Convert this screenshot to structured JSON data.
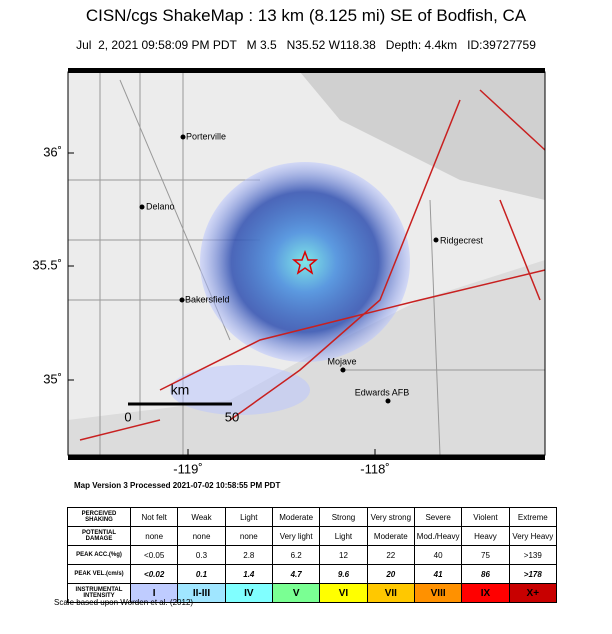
{
  "header": {
    "title": "CISN/cgs ShakeMap : 13 km (8.125 mi) SE of Bodfish, CA",
    "subtitle": "Jul  2, 2021 09:58:09 PM PDT   M 3.5   N35.52 W118.38   Depth: 4.4km   ID:39727759"
  },
  "map": {
    "lat_labels": [
      "36˚",
      "35.5˚",
      "35˚"
    ],
    "lon_labels": [
      "-119˚",
      "-118˚"
    ],
    "cities": [
      "Porterville",
      "Delano",
      "Ridgecrest",
      "Bakersfield",
      "Mojave",
      "Edwards AFB"
    ],
    "scale": {
      "unit": "km",
      "start": "0",
      "end": "50"
    }
  },
  "processed": "Map Version 3 Processed 2021-07-02 10:58:55 PM PDT",
  "table": {
    "rows": [
      [
        "PERCEIVED SHAKING",
        "Not felt",
        "Weak",
        "Light",
        "Moderate",
        "Strong",
        "Very strong",
        "Severe",
        "Violent",
        "Extreme"
      ],
      [
        "POTENTIAL DAMAGE",
        "none",
        "none",
        "none",
        "Very light",
        "Light",
        "Moderate",
        "Mod./Heavy",
        "Heavy",
        "Very Heavy"
      ],
      [
        "PEAK ACC.(%g)",
        "<0.05",
        "0.3",
        "2.8",
        "6.2",
        "12",
        "22",
        "40",
        "75",
        ">139"
      ],
      [
        "PEAK VEL.(cm/s)",
        "<0.02",
        "0.1",
        "1.4",
        "4.7",
        "9.6",
        "20",
        "41",
        "86",
        ">178"
      ],
      [
        "INSTRUMENTAL INTENSITY",
        "I",
        "II-III",
        "IV",
        "V",
        "VI",
        "VII",
        "VIII",
        "IX",
        "X+"
      ]
    ]
  },
  "footnote": "Scale based upon Worden et al. (2012)"
}
